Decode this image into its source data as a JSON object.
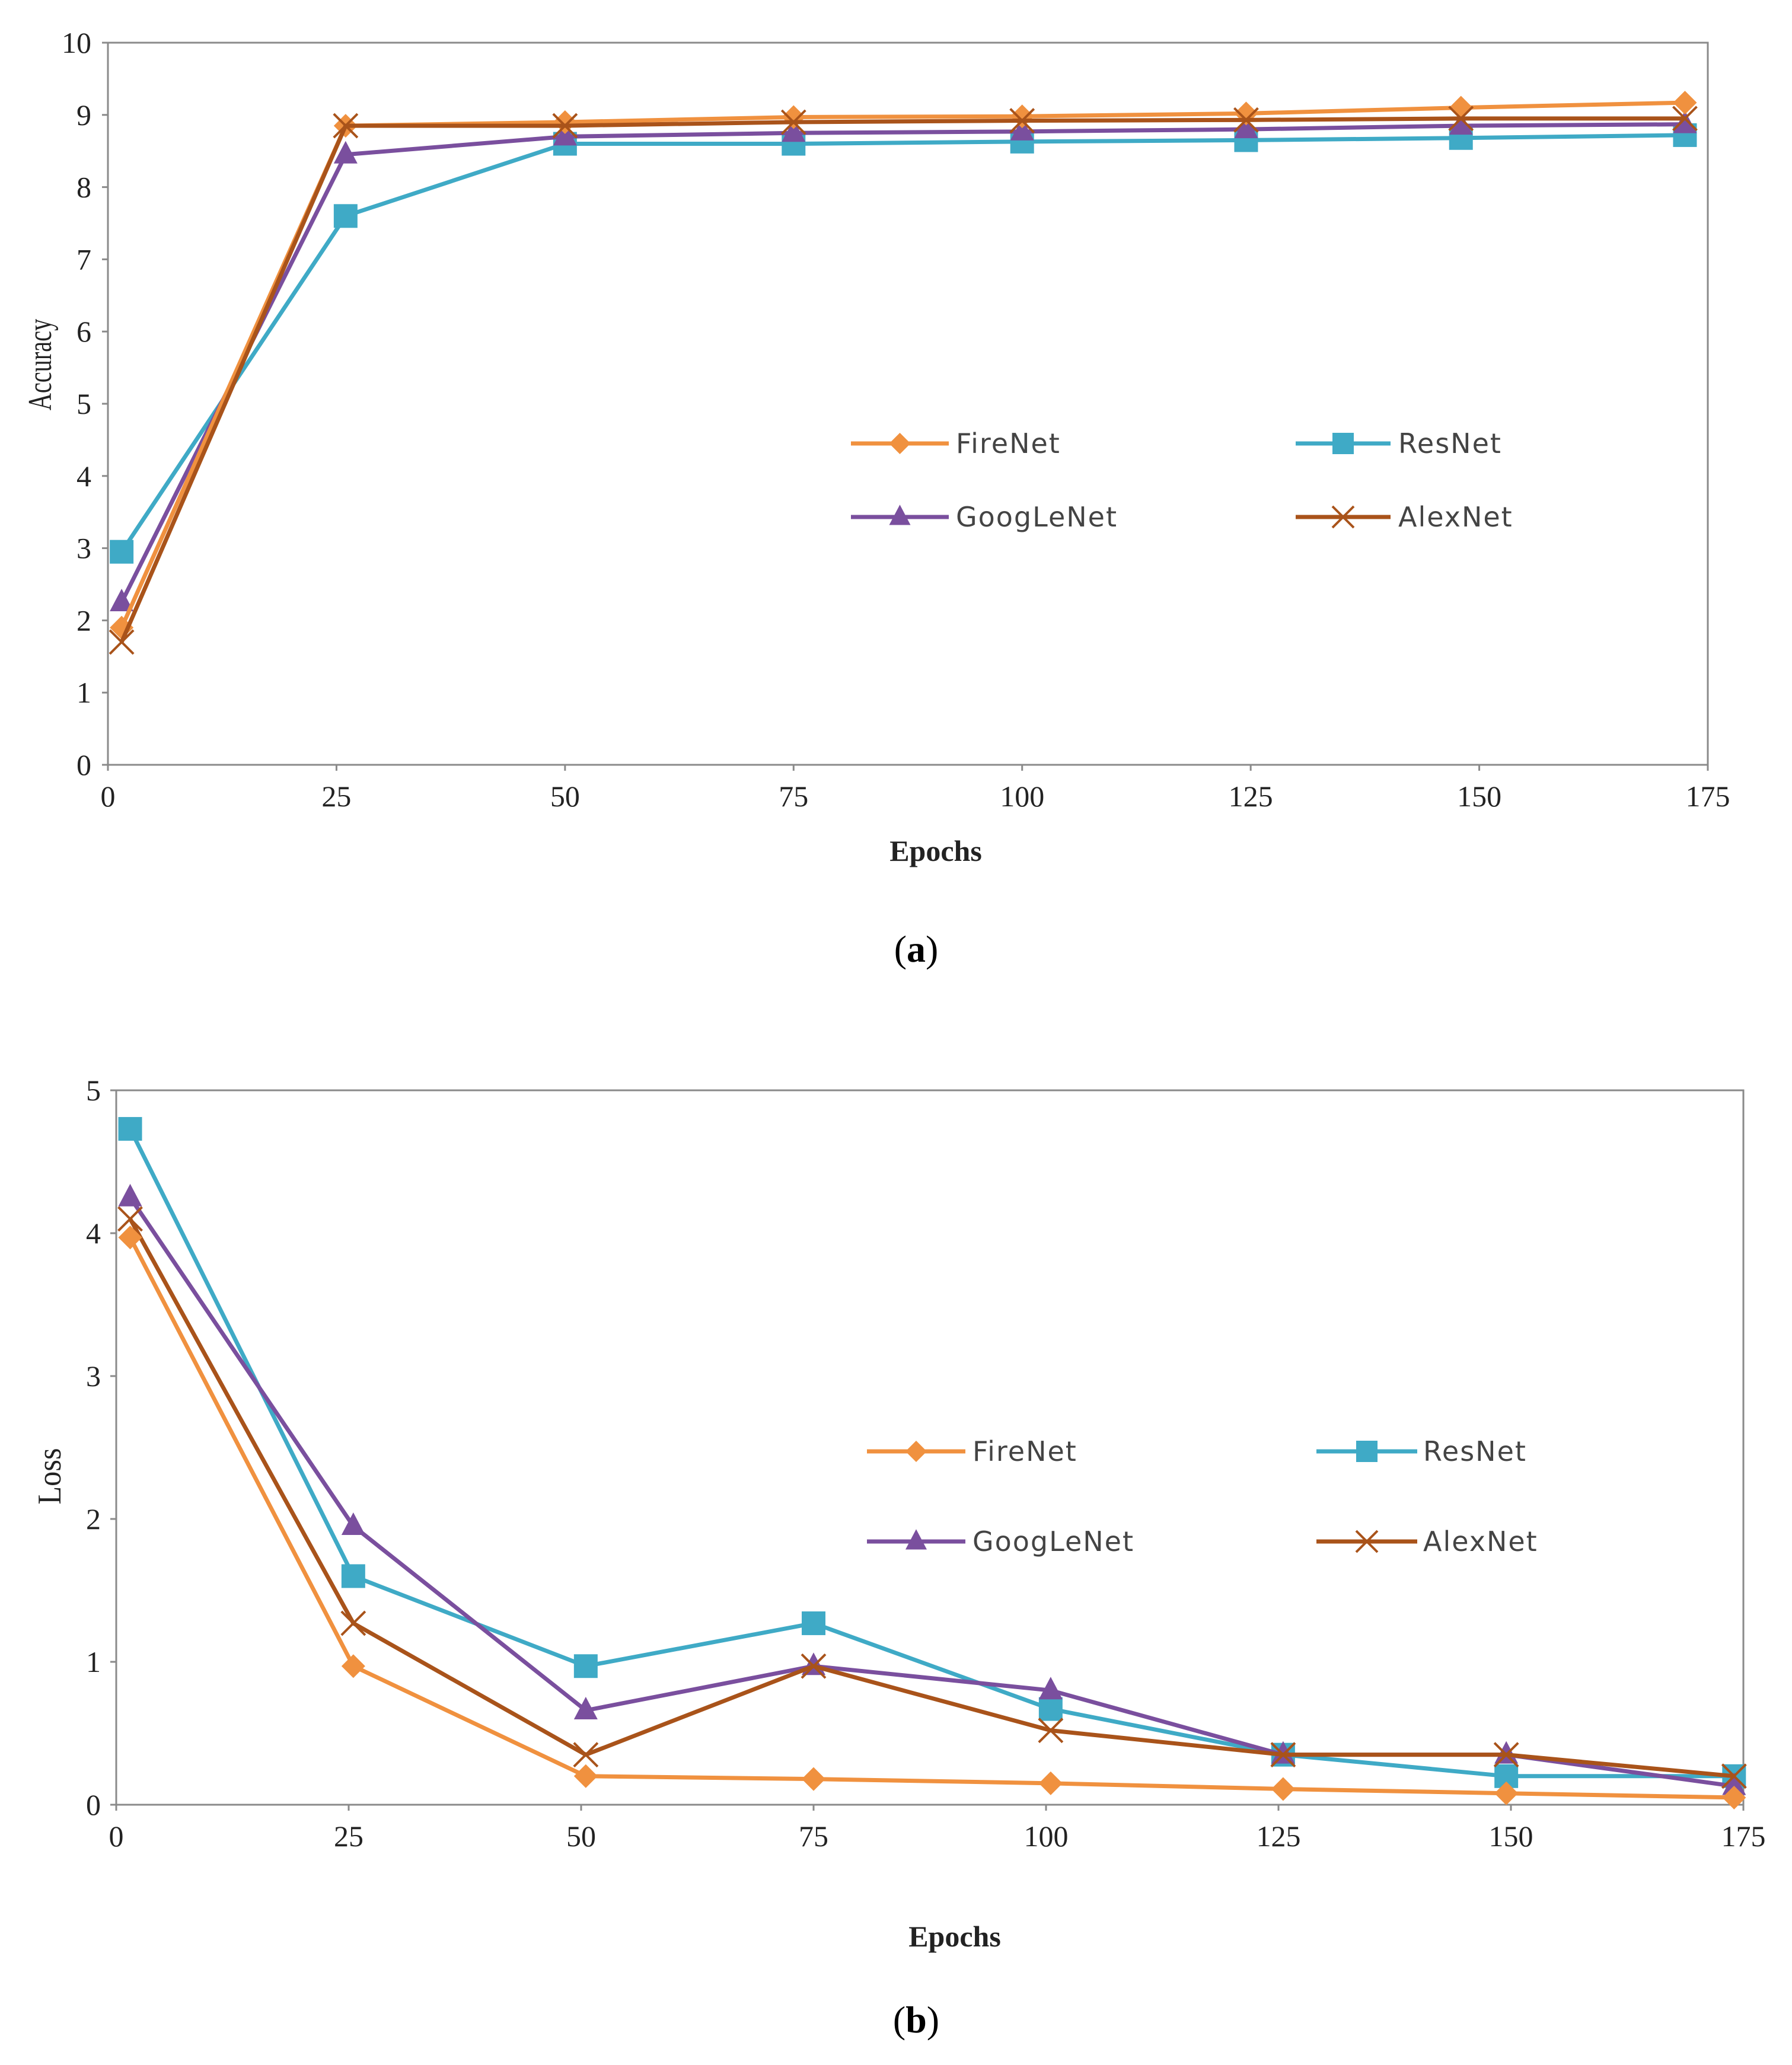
{
  "colors": {
    "FireNet": "#F0913F",
    "ResNet": "#3FAAC6",
    "GoogLeNet": "#7A4F9E",
    "AlexNet": "#A9531A",
    "axis": "#8a8a8a",
    "text": "#222222"
  },
  "chart_data": [
    {
      "type": "line",
      "panel": "a",
      "caption": {
        "open": "(",
        "letter": "a",
        "close": ")"
      },
      "xlabel": "Epochs",
      "ylabel": "Accuracy",
      "xlim": [
        0,
        175
      ],
      "ylim": [
        0,
        10
      ],
      "xticks": [
        0,
        25,
        50,
        75,
        100,
        125,
        150,
        175
      ],
      "yticks": [
        0,
        1,
        2,
        3,
        4,
        5,
        6,
        7,
        8,
        9,
        10
      ],
      "grid": false,
      "legend_position": "center-right",
      "x": [
        1.5,
        26,
        50,
        75,
        100,
        124.5,
        148,
        172.5
      ],
      "series": [
        {
          "name": "FireNet",
          "marker": "diamond",
          "values": [
            1.9,
            8.85,
            8.9,
            8.97,
            8.98,
            9.02,
            9.1,
            9.17
          ]
        },
        {
          "name": "ResNet",
          "marker": "square",
          "values": [
            2.95,
            7.6,
            8.6,
            8.6,
            8.63,
            8.65,
            8.68,
            8.72
          ]
        },
        {
          "name": "GoogLeNet",
          "marker": "triangle",
          "values": [
            2.25,
            8.45,
            8.7,
            8.75,
            8.77,
            8.8,
            8.85,
            8.87
          ]
        },
        {
          "name": "AlexNet",
          "marker": "x",
          "values": [
            1.7,
            8.85,
            8.85,
            8.9,
            8.92,
            8.93,
            8.95,
            8.95
          ]
        }
      ]
    },
    {
      "type": "line",
      "panel": "b",
      "caption": {
        "open": "(",
        "letter": "b",
        "close": ")"
      },
      "xlabel": "Epochs",
      "ylabel": "Loss",
      "xlim": [
        0,
        175
      ],
      "ylim": [
        0,
        5
      ],
      "xticks": [
        0,
        25,
        50,
        75,
        100,
        125,
        150,
        175
      ],
      "yticks": [
        0,
        1,
        2,
        3,
        4,
        5
      ],
      "grid": false,
      "legend_position": "center-right",
      "x": [
        1.5,
        25.5,
        50.5,
        75,
        100.5,
        125.5,
        149.5,
        174
      ],
      "series": [
        {
          "name": "FireNet",
          "marker": "diamond",
          "values": [
            3.97,
            0.97,
            0.2,
            0.18,
            0.15,
            0.11,
            0.08,
            0.05
          ]
        },
        {
          "name": "ResNet",
          "marker": "square",
          "values": [
            4.73,
            1.6,
            0.97,
            1.27,
            0.67,
            0.35,
            0.2,
            0.2
          ]
        },
        {
          "name": "GoogLeNet",
          "marker": "triangle",
          "values": [
            4.25,
            1.95,
            0.66,
            0.97,
            0.8,
            0.35,
            0.35,
            0.13
          ]
        },
        {
          "name": "AlexNet",
          "marker": "x",
          "values": [
            4.1,
            1.27,
            0.35,
            0.97,
            0.52,
            0.35,
            0.35,
            0.2
          ]
        }
      ]
    }
  ]
}
